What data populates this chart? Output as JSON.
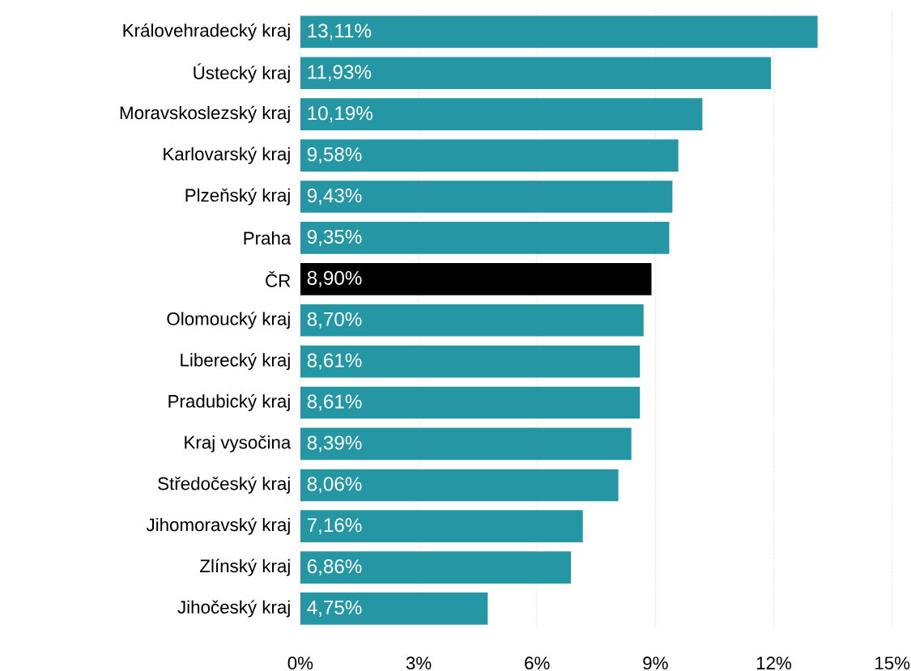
{
  "chart_data": {
    "type": "bar",
    "orientation": "horizontal",
    "categories": [
      "Královehradecký kraj",
      "Ústecký kraj",
      "Moravskoslezský kraj",
      "Karlovarský kraj",
      "Plzeňský kraj",
      "Praha",
      "ČR",
      "Olomoucký kraj",
      "Liberecký kraj",
      "Pradubický kraj",
      "Kraj vysočina",
      "Středočeský kraj",
      "Jihomoravský kraj",
      "Zlínský kraj",
      "Jihočeský kraj"
    ],
    "values": [
      13.11,
      11.93,
      10.19,
      9.58,
      9.43,
      9.35,
      8.9,
      8.7,
      8.61,
      8.61,
      8.39,
      8.06,
      7.16,
      6.86,
      4.75
    ],
    "colors": [
      "#2596a3",
      "#2596a3",
      "#2596a3",
      "#2596a3",
      "#2596a3",
      "#2596a3",
      "#000000",
      "#2596a3",
      "#2596a3",
      "#2596a3",
      "#2596a3",
      "#2596a3",
      "#2596a3",
      "#2596a3",
      "#2596a3"
    ],
    "value_labels": [
      "13,11%",
      "11,93%",
      "10,19%",
      "9,58%",
      "9,43%",
      "9,35%",
      "8,90%",
      "8,70%",
      "8,61%",
      "8,61%",
      "8,39%",
      "8,06%",
      "7,16%",
      "6,86%",
      "4,75%"
    ],
    "xlim": [
      0,
      15
    ],
    "xticks": [
      {
        "value": 0,
        "label": "0%"
      },
      {
        "value": 3,
        "label": "3%"
      },
      {
        "value": 6,
        "label": "6%"
      },
      {
        "value": 9,
        "label": "9%"
      },
      {
        "value": 12,
        "label": "12%"
      },
      {
        "value": 15,
        "label": "15%"
      }
    ],
    "grid": "x"
  }
}
